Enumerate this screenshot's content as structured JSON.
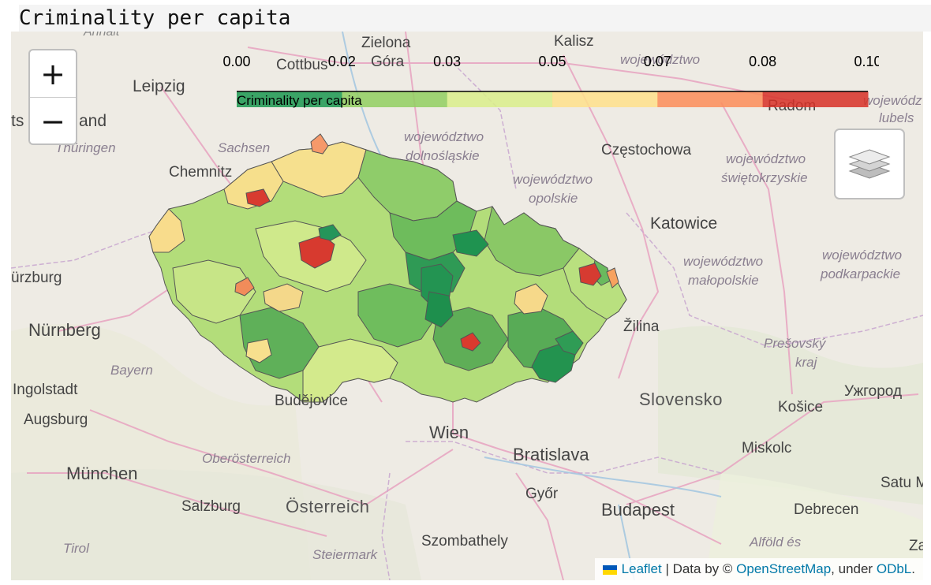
{
  "page": {
    "title": "Criminality per capita"
  },
  "legend": {
    "ticks": [
      "0.00",
      "0.02",
      "0.03",
      "0.05",
      "0.07",
      "0.08",
      "0.10"
    ],
    "caption": "Criminality per capita",
    "colors": [
      "#1a9850",
      "#91cf60",
      "#d9ef8b",
      "#fee08b",
      "#fc8d59",
      "#d73027"
    ]
  },
  "controls": {
    "zoom_in": "+",
    "zoom_out": "−",
    "layers_icon": "layers-icon"
  },
  "attribution": {
    "leaflet": "Leaflet",
    "data_by": "| Data by ©",
    "osm": "OpenStreetMap",
    "under": ", under",
    "odbl": "ODbL",
    "end": "."
  },
  "labels": {
    "annait": "Annait",
    "zielona": "Zielona",
    "gora": "Góra",
    "cottbus": "Cottbus",
    "kalisz": "Kalisz",
    "wojewodztwo_top": "województwo",
    "leipzig": "Leipzig",
    "radom": "Radom",
    "wojewodztwo_lubelskie_1": "wojewódz",
    "wojewodztwo_lubelskie_2": "lubels",
    "ts_land": "ts",
    "land": "and",
    "thuringen": "Thüringen",
    "sachsen": "Sachsen",
    "dolnoslaskie_1": "województwo",
    "dolnoslaskie_2": "dolnośląskie",
    "czestochowa": "Częstochowa",
    "swietokrzyskie_1": "województwo",
    "swietokrzyskie_2": "świętokrzyskie",
    "chemnitz": "Chemnitz",
    "opolskie_1": "województwo",
    "opolskie_2": "opolskie",
    "katowice": "Katowice",
    "wurzburg": "ürzburg",
    "malopolskie_1": "województwo",
    "malopolskie_2": "małopolskie",
    "podkarpackie_1": "województwo",
    "podkarpackie_2": "podkarpackie",
    "nurnberg": "Nürnberg",
    "zilina": "Žilina",
    "bayern": "Bayern",
    "presovsky_1": "Prešovský",
    "presovsky_2": "kraj",
    "ingolstadt": "Ingolstadt",
    "budejovice": "Budějovice",
    "slovensko": "Slovensko",
    "kosice": "Košice",
    "uzhhorod": "Ужгород",
    "augsburg": "Augsburg",
    "wien": "Wien",
    "bratislava": "Bratislava",
    "oberosterreich": "Oberösterreich",
    "miskolc": "Miskolc",
    "munchen": "München",
    "satu": "Satu M",
    "salzburg": "Salzburg",
    "osterreich": "Österreich",
    "gyor": "Győr",
    "budapest": "Budapest",
    "debrecen": "Debrecen",
    "tirol": "Tirol",
    "szombathely": "Szombathely",
    "alfold_es": "Alföld és",
    "steiermark": "Steiermark",
    "za": "Za"
  }
}
